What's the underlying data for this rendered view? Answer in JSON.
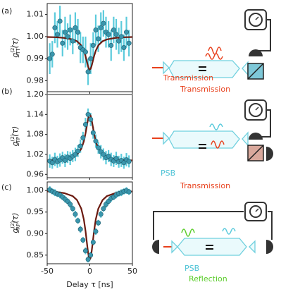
{
  "chart_data": [
    {
      "type": "scatter",
      "panel_label": "(a)",
      "ylabel": {
        "symbol": "g",
        "superscript": "(2)",
        "subscript": "TT",
        "argument": "(τ)"
      },
      "xlim": [
        -50,
        50
      ],
      "xticks": [
        -50,
        0,
        50
      ],
      "show_xtick_labels": false,
      "ylim": [
        0.975,
        1.015
      ],
      "yticks": [
        0.98,
        0.99,
        {
          "value": 1,
          "label": "1.00"
        },
        1.01
      ],
      "color": "#3a96ad",
      "error_color": "#5ccbdc",
      "fit_color": "#6b1a10",
      "x": [
        -47,
        -44,
        -41,
        -38,
        -35,
        -32,
        -29,
        -26,
        -23,
        -20,
        -17,
        -14,
        -11,
        -8,
        -5,
        -2,
        1,
        4,
        7,
        10,
        13,
        16,
        19,
        22,
        25,
        28,
        31,
        34,
        37,
        40,
        43,
        46
      ],
      "values": [
        0.99,
        0.992,
        1.004,
        1.001,
        1.007,
        0.997,
        1.002,
        1.0,
        1.003,
        0.998,
        1.004,
        1.002,
        0.995,
        0.994,
        0.993,
        0.984,
        0.99,
        0.996,
        1.003,
        0.999,
        1.004,
        1.006,
        1.002,
        1.001,
        0.996,
        1.003,
        1.001,
        0.998,
        1.0,
        0.995,
        1.002,
        0.997
      ],
      "errors": [
        0.007,
        0.006,
        0.007,
        0.006,
        0.007,
        0.006,
        0.007,
        0.006,
        0.007,
        0.006,
        0.007,
        0.006,
        0.007,
        0.006,
        0.007,
        0.006,
        0.007,
        0.006,
        0.007,
        0.006,
        0.007,
        0.006,
        0.007,
        0.006,
        0.007,
        0.006,
        0.007,
        0.006,
        0.007,
        0.006,
        0.007,
        0.006
      ],
      "fit": {
        "x": [
          -50,
          -40,
          -30,
          -20,
          -15,
          -10,
          -7,
          -5,
          -3,
          -2,
          -1,
          0,
          1,
          2,
          3,
          5,
          7,
          10,
          15,
          20,
          30,
          40,
          50
        ],
        "values": [
          0.9998,
          0.9997,
          0.9994,
          0.9987,
          0.9979,
          0.996,
          0.9936,
          0.9911,
          0.988,
          0.9865,
          0.9854,
          0.985,
          0.9854,
          0.9865,
          0.988,
          0.9911,
          0.9936,
          0.996,
          0.9979,
          0.9987,
          0.9994,
          0.9997,
          0.9998
        ]
      }
    },
    {
      "type": "scatter",
      "panel_label": "(b)",
      "ylabel": {
        "symbol": "g",
        "superscript": "(2)",
        "subscript": "TP",
        "argument": "(τ)"
      },
      "xlim": [
        -50,
        50
      ],
      "xticks": [
        -50,
        0,
        50
      ],
      "show_xtick_labels": false,
      "ylim": [
        0.95,
        1.2
      ],
      "yticks": [
        0.96,
        1.02,
        1.08,
        1.14,
        {
          "value": 1.2,
          "label": "1.20"
        }
      ],
      "color": "#3a96ad",
      "error_color": "#5ccbdc",
      "fit_color": "#6b1a10",
      "x": [
        -47,
        -44,
        -41,
        -38,
        -35,
        -32,
        -29,
        -26,
        -23,
        -20,
        -17,
        -14,
        -11,
        -8,
        -5,
        -2,
        1,
        4,
        7,
        10,
        13,
        16,
        19,
        22,
        25,
        28,
        31,
        34,
        37,
        40,
        43,
        46
      ],
      "values": [
        1.0,
        0.995,
        1.005,
        0.998,
        1.003,
        1.01,
        1.002,
        1.012,
        1.008,
        1.015,
        1.02,
        1.03,
        1.045,
        1.07,
        1.11,
        1.14,
        1.125,
        1.085,
        1.06,
        1.04,
        1.028,
        1.02,
        1.01,
        1.015,
        1.005,
        1.0,
        1.008,
        0.998,
        1.002,
        0.995,
        1.004,
        0.999
      ],
      "errors": [
        0.02,
        0.018,
        0.02,
        0.018,
        0.02,
        0.018,
        0.02,
        0.018,
        0.02,
        0.018,
        0.02,
        0.018,
        0.02,
        0.018,
        0.02,
        0.018,
        0.02,
        0.018,
        0.02,
        0.018,
        0.02,
        0.018,
        0.02,
        0.018,
        0.02,
        0.018,
        0.02,
        0.018,
        0.02,
        0.018,
        0.02,
        0.018
      ],
      "fit": {
        "x": [
          -50,
          -40,
          -30,
          -20,
          -15,
          -10,
          -7,
          -5,
          -3,
          -2,
          -1,
          0,
          1,
          2,
          3,
          5,
          7,
          10,
          15,
          20,
          30,
          40,
          50
        ],
        "values": [
          1.002,
          1.003,
          1.005,
          1.012,
          1.019,
          1.037,
          1.059,
          1.083,
          1.112,
          1.126,
          1.136,
          1.14,
          1.136,
          1.126,
          1.112,
          1.083,
          1.059,
          1.037,
          1.019,
          1.012,
          1.005,
          1.003,
          1.002
        ]
      }
    },
    {
      "type": "scatter",
      "panel_label": "(c)",
      "ylabel": {
        "symbol": "g",
        "superscript": "(2)",
        "subscript": "RP",
        "argument": "(τ)"
      },
      "xlim": [
        -50,
        50
      ],
      "xticks": [
        -50,
        0,
        50
      ],
      "show_xtick_labels": true,
      "xlabel": "Delay τ [ns]",
      "ylim": [
        0.83,
        1.02
      ],
      "yticks": [
        0.85,
        {
          "value": 0.9,
          "label": "0.90"
        },
        0.95,
        {
          "value": 1,
          "label": "1.00"
        }
      ],
      "color": "#3a96ad",
      "error_color": "#5ccbdc",
      "fit_color": "#6b1a10",
      "x": [
        -47,
        -44,
        -41,
        -38,
        -35,
        -32,
        -29,
        -26,
        -23,
        -20,
        -17,
        -14,
        -11,
        -8,
        -5,
        -2,
        1,
        4,
        7,
        10,
        13,
        16,
        19,
        22,
        25,
        28,
        31,
        34,
        37,
        40,
        43,
        46
      ],
      "values": [
        1.002,
        0.998,
        0.995,
        0.992,
        0.99,
        0.985,
        0.98,
        0.975,
        0.968,
        0.958,
        0.945,
        0.93,
        0.91,
        0.885,
        0.86,
        0.84,
        0.85,
        0.88,
        0.905,
        0.925,
        0.945,
        0.958,
        0.968,
        0.975,
        0.982,
        0.985,
        0.99,
        0.993,
        0.995,
        0.998,
        1.0,
        0.997
      ],
      "errors": [
        0.008,
        0.007,
        0.008,
        0.007,
        0.008,
        0.007,
        0.008,
        0.007,
        0.008,
        0.007,
        0.008,
        0.007,
        0.008,
        0.007,
        0.008,
        0.007,
        0.008,
        0.007,
        0.008,
        0.007,
        0.008,
        0.007,
        0.008,
        0.007,
        0.008,
        0.007,
        0.008,
        0.007,
        0.008,
        0.007,
        0.008,
        0.007
      ],
      "fit": {
        "x": [
          -50,
          -40,
          -30,
          -20,
          -15,
          -10,
          -7,
          -5,
          -3,
          -2,
          -1,
          0,
          1,
          2,
          3,
          5,
          7,
          10,
          15,
          20,
          30,
          40,
          50
        ],
        "values": [
          0.998,
          0.997,
          0.994,
          0.987,
          0.978,
          0.958,
          0.933,
          0.906,
          0.872,
          0.856,
          0.844,
          0.84,
          0.844,
          0.856,
          0.872,
          0.906,
          0.933,
          0.958,
          0.978,
          0.987,
          0.994,
          0.997,
          0.998
        ]
      }
    }
  ],
  "diagrams": [
    {
      "labels": [
        "Transmission",
        "Transmission"
      ]
    },
    {
      "labels": [
        "PSB",
        "Transmission"
      ]
    },
    {
      "labels": [
        "PSB",
        "Reflection"
      ]
    }
  ]
}
